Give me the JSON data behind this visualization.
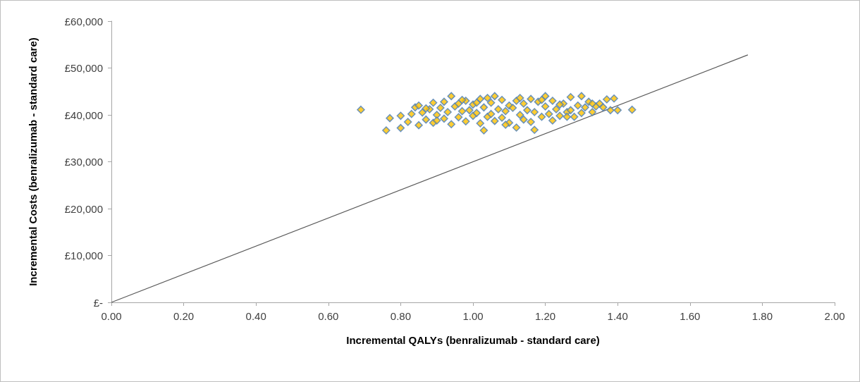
{
  "chart_data": {
    "type": "scatter",
    "xlabel": "Incremental QALYs (benralizumab - standard care)",
    "ylabel": "Incremental Costs (benralizumab - standard care)",
    "xlim": [
      0,
      2
    ],
    "xticks": [
      {
        "value": 0,
        "label": "0.00"
      },
      {
        "value": 0.2,
        "label": "0.20"
      },
      {
        "value": 0.4,
        "label": "0.40"
      },
      {
        "value": 0.6,
        "label": "0.60"
      },
      {
        "value": 0.8,
        "label": "0.80"
      },
      {
        "value": 1,
        "label": "1.00"
      },
      {
        "value": 1.2,
        "label": "1.20"
      },
      {
        "value": 1.4,
        "label": "1.40"
      },
      {
        "value": 1.6,
        "label": "1.60"
      },
      {
        "value": 1.8,
        "label": "1.80"
      },
      {
        "value": 2,
        "label": "2.00"
      }
    ],
    "ylim": [
      0,
      60000
    ],
    "yticks": [
      {
        "value": 0,
        "label": "£-"
      },
      {
        "value": 10000,
        "label": "£10,000"
      },
      {
        "value": 20000,
        "label": "£20,000"
      },
      {
        "value": 30000,
        "label": "£30,000"
      },
      {
        "value": 40000,
        "label": "£40,000"
      },
      {
        "value": 50000,
        "label": "£50,000"
      },
      {
        "value": 60000,
        "label": "£60,000"
      }
    ],
    "grid": false,
    "series": [
      {
        "color": "#ffc000",
        "marker": "diamond",
        "x": [
          0.69,
          0.77,
          0.76,
          0.8,
          0.8,
          0.82,
          0.83,
          0.84,
          0.85,
          0.85,
          0.86,
          0.87,
          0.88,
          0.89,
          0.89,
          0.9,
          0.91,
          0.92,
          0.92,
          0.93,
          0.94,
          0.94,
          0.95,
          0.96,
          0.96,
          0.97,
          0.98,
          0.98,
          0.99,
          1.0,
          1.0,
          1.01,
          1.02,
          1.02,
          1.03,
          1.03,
          1.04,
          1.05,
          1.05,
          1.06,
          1.06,
          1.07,
          1.08,
          1.08,
          1.09,
          1.1,
          1.1,
          1.11,
          1.12,
          1.12,
          1.13,
          1.14,
          1.14,
          1.15,
          1.16,
          1.16,
          1.17,
          1.17,
          1.18,
          1.19,
          1.2,
          1.2,
          1.21,
          1.22,
          1.22,
          1.23,
          1.24,
          1.25,
          1.26,
          1.27,
          1.27,
          1.28,
          1.29,
          1.3,
          1.3,
          1.31,
          1.32,
          1.33,
          1.34,
          1.35,
          1.36,
          1.37,
          1.39,
          1.38,
          1.4,
          1.44,
          0.87,
          0.9,
          0.97,
          1.01,
          1.04,
          1.09,
          1.13,
          1.19,
          1.24,
          1.26,
          1.33
        ],
        "values": [
          41100,
          39300,
          36700,
          37200,
          39800,
          38500,
          40200,
          41600,
          37800,
          42000,
          40500,
          39000,
          41200,
          42600,
          38300,
          40000,
          41500,
          39200,
          42800,
          40600,
          44000,
          38000,
          41800,
          39500,
          42400,
          40800,
          38600,
          43000,
          41000,
          39800,
          42200,
          40400,
          38200,
          43400,
          36700,
          41600,
          39600,
          42600,
          40200,
          44000,
          38700,
          41200,
          43200,
          39400,
          40800,
          42000,
          38300,
          41500,
          37300,
          43000,
          40000,
          42400,
          39000,
          41000,
          43400,
          38500,
          36800,
          40600,
          42800,
          39600,
          41800,
          44000,
          40200,
          38800,
          43000,
          41200,
          39800,
          42400,
          40600,
          43800,
          41000,
          39600,
          42000,
          40400,
          44000,
          41600,
          42800,
          40600,
          41800,
          42400,
          41600,
          43300,
          43500,
          41000,
          41000,
          41100,
          41400,
          38800,
          43200,
          42600,
          43600,
          37900,
          43600,
          43200,
          42200,
          39600,
          42400
        ]
      },
      {
        "type": "line",
        "color": "#595959",
        "marker": "none",
        "x": [
          0,
          1.76
        ],
        "values": [
          0,
          52800
        ]
      }
    ]
  }
}
